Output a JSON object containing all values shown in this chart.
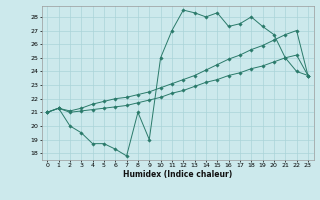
{
  "xlabel": "Humidex (Indice chaleur)",
  "bg_color": "#cce9ec",
  "grid_color": "#aad4d8",
  "line_color": "#2a7a6a",
  "xlim": [
    -0.5,
    23.5
  ],
  "ylim": [
    17.5,
    28.8
  ],
  "xtick_vals": [
    0,
    1,
    2,
    3,
    4,
    5,
    6,
    7,
    8,
    9,
    10,
    11,
    12,
    13,
    14,
    15,
    16,
    17,
    18,
    19,
    20,
    21,
    22,
    23
  ],
  "ytick_vals": [
    18,
    19,
    20,
    21,
    22,
    23,
    24,
    25,
    26,
    27,
    28
  ],
  "line1_x": [
    0,
    1,
    2,
    3,
    4,
    5,
    6,
    7,
    8,
    9,
    10,
    11,
    12,
    13,
    14,
    15,
    16,
    17,
    18,
    19,
    20,
    21,
    22,
    23
  ],
  "line1_y": [
    21.0,
    21.3,
    20.0,
    19.5,
    18.7,
    18.7,
    18.3,
    17.8,
    21.0,
    19.0,
    25.0,
    27.0,
    28.5,
    28.3,
    28.0,
    28.3,
    27.3,
    27.5,
    28.0,
    27.3,
    26.7,
    25.0,
    24.0,
    23.7
  ],
  "line2_x": [
    0,
    1,
    2,
    3,
    4,
    5,
    6,
    7,
    8,
    9,
    10,
    11,
    12,
    13,
    14,
    15,
    16,
    17,
    18,
    19,
    20,
    21,
    22,
    23
  ],
  "line2_y": [
    21.0,
    21.3,
    21.0,
    21.1,
    21.2,
    21.3,
    21.4,
    21.5,
    21.7,
    21.9,
    22.1,
    22.4,
    22.6,
    22.9,
    23.2,
    23.4,
    23.7,
    23.9,
    24.2,
    24.4,
    24.7,
    25.0,
    25.2,
    23.7
  ],
  "line3_x": [
    0,
    1,
    2,
    3,
    4,
    5,
    6,
    7,
    8,
    9,
    10,
    11,
    12,
    13,
    14,
    15,
    16,
    17,
    18,
    19,
    20,
    21,
    22,
    23
  ],
  "line3_y": [
    21.0,
    21.3,
    21.1,
    21.3,
    21.6,
    21.8,
    22.0,
    22.1,
    22.3,
    22.5,
    22.8,
    23.1,
    23.4,
    23.7,
    24.1,
    24.5,
    24.9,
    25.2,
    25.6,
    25.9,
    26.3,
    26.7,
    27.0,
    23.7
  ]
}
